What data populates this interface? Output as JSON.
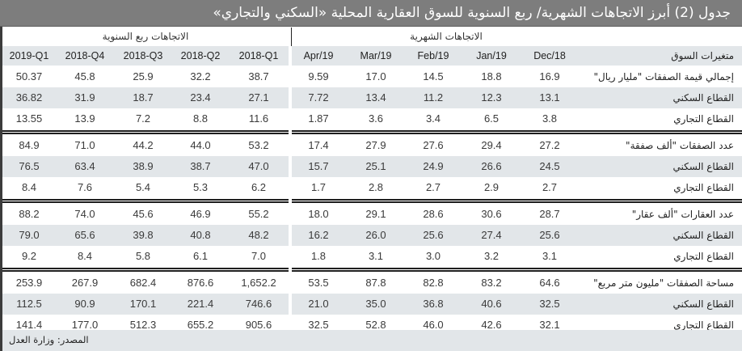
{
  "title": "جدول (2) أبرز الاتجاهات الشهرية/ ربع السنوية للسوق العقارية المحلية «السكني والتجاري»",
  "groups": {
    "monthly": "الاتجاهات الشهرية",
    "quarterly": "الاتجاهات ربع السنوية"
  },
  "header": {
    "label": "متغيرات السوق",
    "monthly": [
      "Dec/18",
      "Jan/19",
      "Feb/19",
      "Mar/19",
      "Apr/19"
    ],
    "quarterly": [
      "2018-Q1",
      "2018-Q2",
      "2018-Q3",
      "2018-Q4",
      "2019-Q1"
    ]
  },
  "sections": [
    {
      "rows": [
        {
          "label": "إجمالي قيمة الصفقات \"مليار ريال\"",
          "monthly": [
            "16.9",
            "18.8",
            "14.5",
            "17.0",
            "9.59"
          ],
          "quarterly": [
            "38.7",
            "32.2",
            "25.9",
            "45.8",
            "50.37"
          ]
        },
        {
          "label": "القطاع السكني",
          "monthly": [
            "13.1",
            "12.3",
            "11.2",
            "13.4",
            "7.72"
          ],
          "quarterly": [
            "27.1",
            "23.4",
            "18.7",
            "31.9",
            "36.82"
          ]
        },
        {
          "label": "القطاع التجاري",
          "monthly": [
            "3.8",
            "6.5",
            "3.4",
            "3.6",
            "1.87"
          ],
          "quarterly": [
            "11.6",
            "8.8",
            "7.2",
            "13.9",
            "13.55"
          ]
        }
      ]
    },
    {
      "rows": [
        {
          "label": "عدد الصفقات \"ألف صفقة\"",
          "monthly": [
            "27.2",
            "29.4",
            "27.6",
            "27.9",
            "17.4"
          ],
          "quarterly": [
            "53.2",
            "44.0",
            "44.2",
            "71.0",
            "84.9"
          ]
        },
        {
          "label": "القطاع السكني",
          "monthly": [
            "24.5",
            "26.6",
            "24.9",
            "25.1",
            "15.7"
          ],
          "quarterly": [
            "47.0",
            "38.7",
            "38.9",
            "63.4",
            "76.5"
          ]
        },
        {
          "label": "القطاع التجاري",
          "monthly": [
            "2.7",
            "2.9",
            "2.7",
            "2.8",
            "1.7"
          ],
          "quarterly": [
            "6.2",
            "5.3",
            "5.4",
            "7.6",
            "8.4"
          ]
        }
      ]
    },
    {
      "rows": [
        {
          "label": "عدد العقارات \"ألف عقار\"",
          "monthly": [
            "28.7",
            "30.6",
            "28.6",
            "29.1",
            "18.0"
          ],
          "quarterly": [
            "55.2",
            "46.9",
            "45.6",
            "74.0",
            "88.2"
          ]
        },
        {
          "label": "القطاع السكني",
          "monthly": [
            "25.6",
            "27.4",
            "25.6",
            "26.0",
            "16.2"
          ],
          "quarterly": [
            "48.2",
            "40.8",
            "39.8",
            "65.6",
            "79.0"
          ]
        },
        {
          "label": "القطاع التجاري",
          "monthly": [
            "3.1",
            "3.2",
            "3.0",
            "3.1",
            "1.8"
          ],
          "quarterly": [
            "7.0",
            "6.1",
            "5.8",
            "8.4",
            "9.2"
          ]
        }
      ]
    },
    {
      "rows": [
        {
          "label": "مساحة الصفقات \"مليون متر مربع\"",
          "monthly": [
            "64.6",
            "83.2",
            "82.8",
            "87.8",
            "53.5"
          ],
          "quarterly": [
            "1,652.2",
            "876.6",
            "682.4",
            "267.9",
            "253.9"
          ]
        },
        {
          "label": "القطاع السكني",
          "monthly": [
            "32.5",
            "40.6",
            "36.8",
            "35.0",
            "21.0"
          ],
          "quarterly": [
            "746.6",
            "221.4",
            "170.1",
            "90.9",
            "112.5"
          ]
        },
        {
          "label": "القطاع التجاري",
          "monthly": [
            "32.1",
            "42.6",
            "46.0",
            "52.8",
            "32.5"
          ],
          "quarterly": [
            "905.6",
            "655.2",
            "512.3",
            "177.0",
            "141.4"
          ]
        }
      ]
    }
  ],
  "footer": {
    "source": "المصدر: وزارة العدل"
  },
  "colors": {
    "title_bg": "#7d7d7d",
    "header_bg": "#e2e6e9",
    "shade_bg": "#e2e6e9",
    "rule": "#1e1e1e"
  }
}
